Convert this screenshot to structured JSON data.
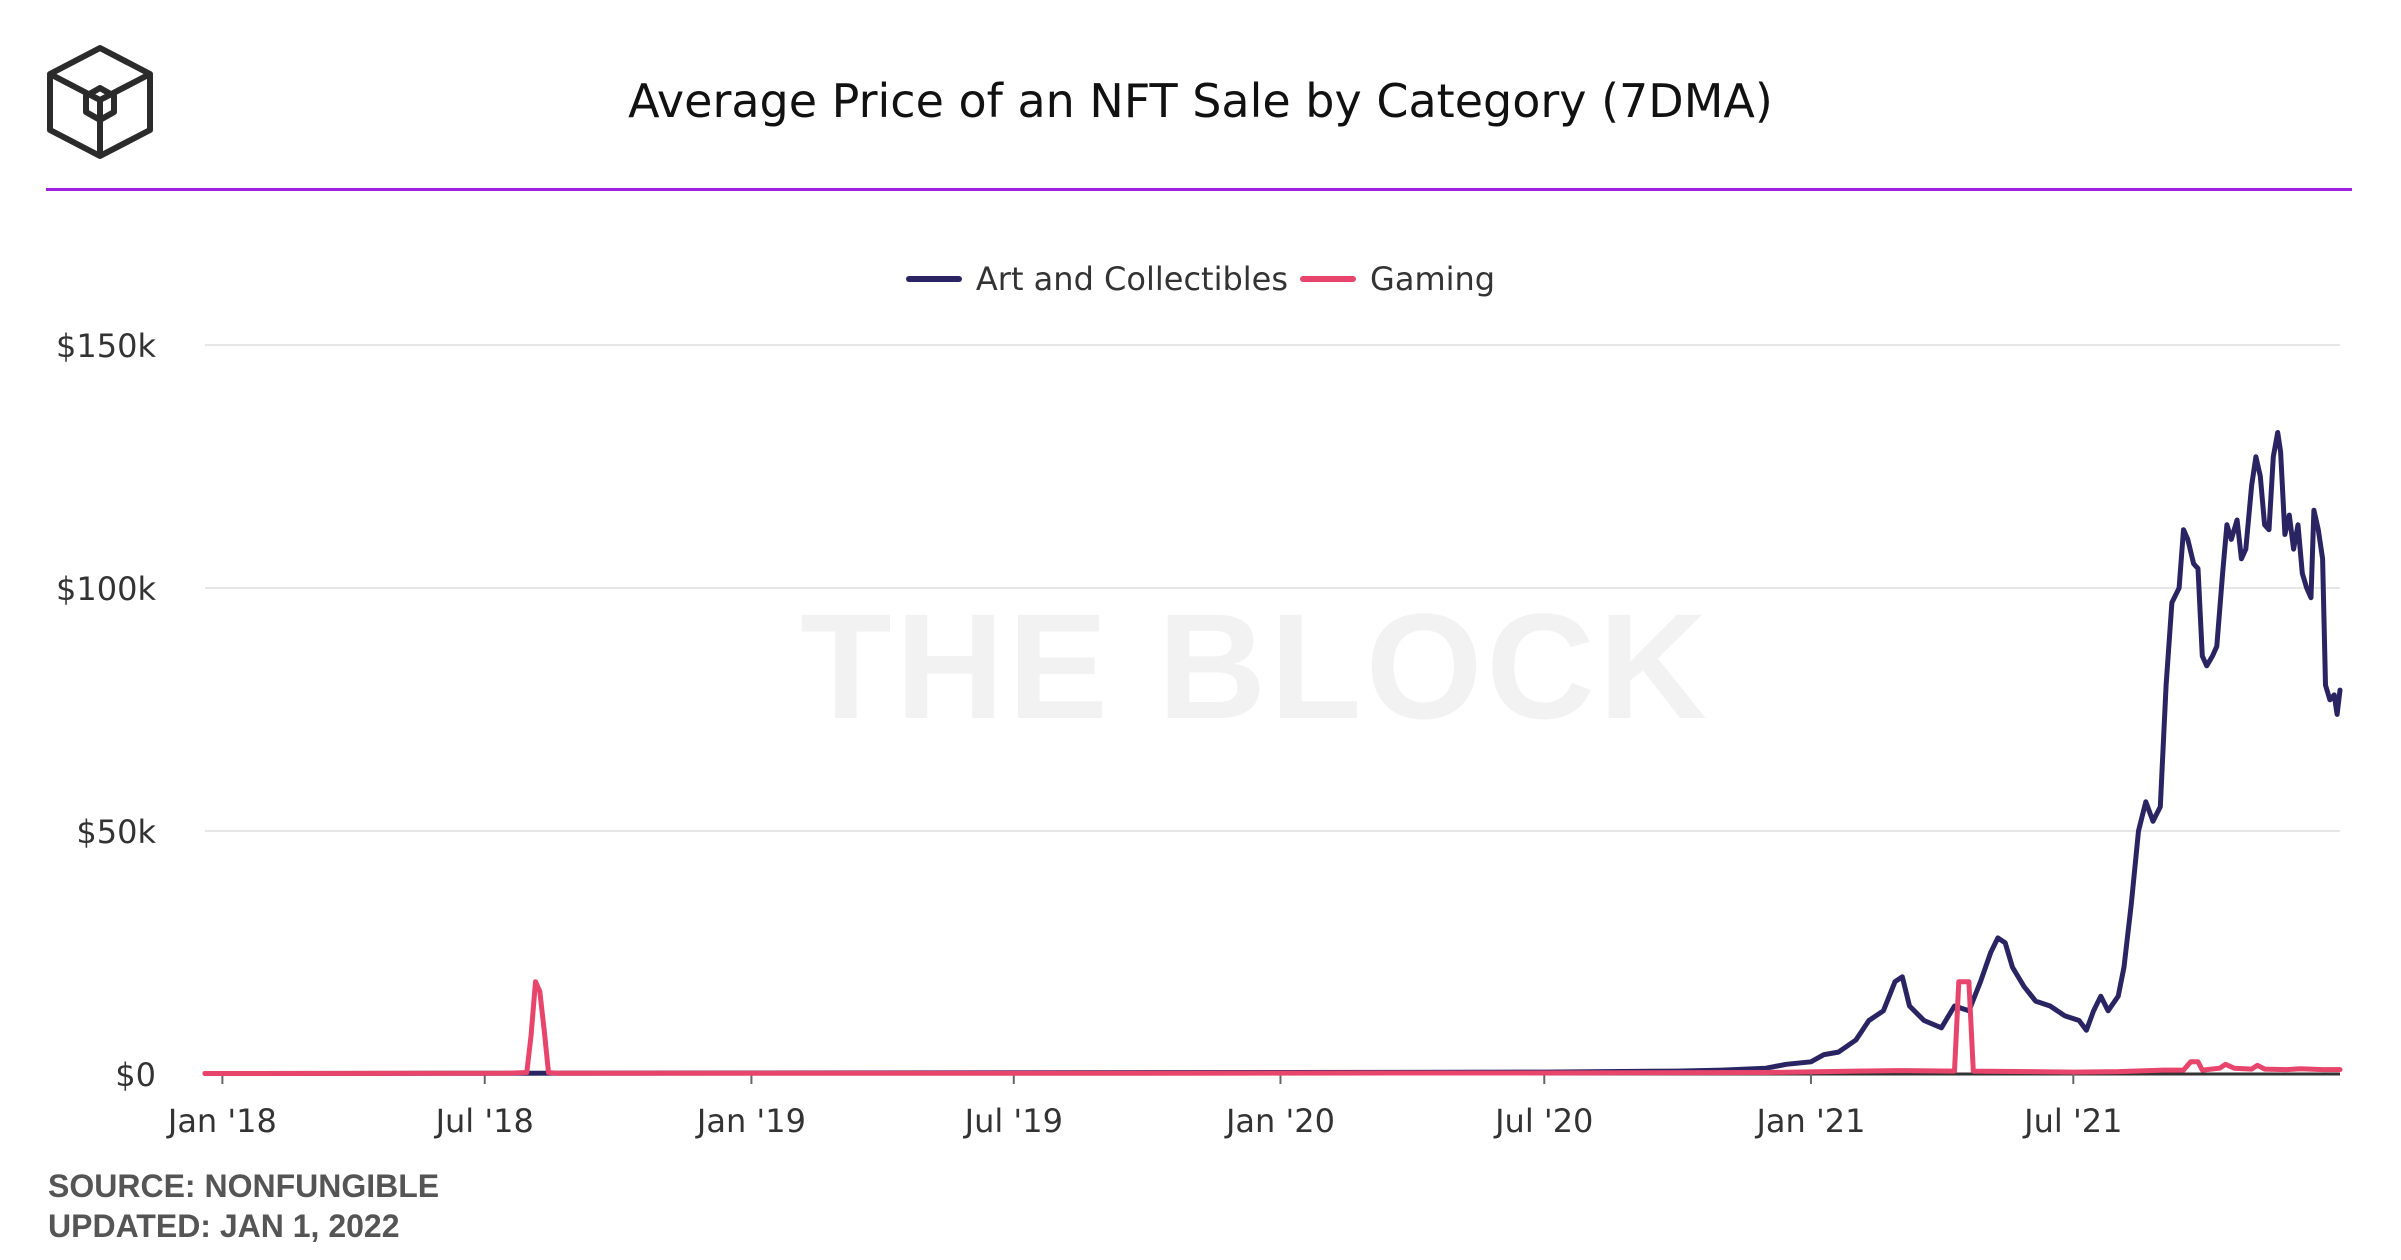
{
  "header": {
    "title": "Average Price of an NFT Sale by Category (7DMA)",
    "watermark": "THE BLOCK"
  },
  "footer": {
    "source": "SOURCE: NONFUNGIBLE",
    "updated": "UPDATED: JAN 1, 2022"
  },
  "colors": {
    "accent_rule": "#a020e0",
    "art": "#2a2462",
    "gaming": "#e8456c",
    "grid": "#e6e6e6"
  },
  "chart_data": {
    "type": "line",
    "title": "Average Price of an NFT Sale by Category (7DMA)",
    "xlabel": "",
    "ylabel": "",
    "x_ticks": [
      "Jan '18",
      "Jul '18",
      "Jan '19",
      "Jul '19",
      "Jan '20",
      "Jul '20",
      "Jan '21",
      "Jul '21"
    ],
    "y_ticks": [
      "$0",
      "$50k",
      "$100k",
      "$150k"
    ],
    "ylim": [
      0,
      150000
    ],
    "xlim": [
      "2017-12-20",
      "2022-01-01"
    ],
    "grid": true,
    "legend_position": "top-center",
    "series": [
      {
        "name": "Art and Collectibles",
        "color": "#2a2462",
        "points": [
          [
            "2017-12-20",
            100
          ],
          [
            "2018-06-01",
            150
          ],
          [
            "2019-01-01",
            200
          ],
          [
            "2019-07-01",
            250
          ],
          [
            "2020-01-01",
            300
          ],
          [
            "2020-07-01",
            400
          ],
          [
            "2020-10-01",
            600
          ],
          [
            "2020-11-01",
            800
          ],
          [
            "2020-12-01",
            1200
          ],
          [
            "2020-12-15",
            2000
          ],
          [
            "2021-01-01",
            2500
          ],
          [
            "2021-01-10",
            4000
          ],
          [
            "2021-01-20",
            4500
          ],
          [
            "2021-02-01",
            7000
          ],
          [
            "2021-02-10",
            11000
          ],
          [
            "2021-02-20",
            13000
          ],
          [
            "2021-02-28",
            19000
          ],
          [
            "2021-03-05",
            20000
          ],
          [
            "2021-03-10",
            14000
          ],
          [
            "2021-03-20",
            11000
          ],
          [
            "2021-04-01",
            9500
          ],
          [
            "2021-04-10",
            14000
          ],
          [
            "2021-04-20",
            13000
          ],
          [
            "2021-04-28",
            19000
          ],
          [
            "2021-05-05",
            25000
          ],
          [
            "2021-05-10",
            28000
          ],
          [
            "2021-05-15",
            27000
          ],
          [
            "2021-05-20",
            22000
          ],
          [
            "2021-05-28",
            18000
          ],
          [
            "2021-06-05",
            15000
          ],
          [
            "2021-06-15",
            14000
          ],
          [
            "2021-06-25",
            12000
          ],
          [
            "2021-07-05",
            11000
          ],
          [
            "2021-07-10",
            9000
          ],
          [
            "2021-07-15",
            13000
          ],
          [
            "2021-07-20",
            16000
          ],
          [
            "2021-07-25",
            13000
          ],
          [
            "2021-08-01",
            16000
          ],
          [
            "2021-08-05",
            22000
          ],
          [
            "2021-08-10",
            35000
          ],
          [
            "2021-08-15",
            50000
          ],
          [
            "2021-08-20",
            56000
          ],
          [
            "2021-08-25",
            52000
          ],
          [
            "2021-08-30",
            55000
          ],
          [
            "2021-09-03",
            80000
          ],
          [
            "2021-09-07",
            97000
          ],
          [
            "2021-09-12",
            100000
          ],
          [
            "2021-09-15",
            112000
          ],
          [
            "2021-09-18",
            110000
          ],
          [
            "2021-09-22",
            105000
          ],
          [
            "2021-09-25",
            104000
          ],
          [
            "2021-09-28",
            86000
          ],
          [
            "2021-10-01",
            84000
          ],
          [
            "2021-10-05",
            86000
          ],
          [
            "2021-10-08",
            88000
          ],
          [
            "2021-10-12",
            103000
          ],
          [
            "2021-10-15",
            113000
          ],
          [
            "2021-10-18",
            110000
          ],
          [
            "2021-10-22",
            114000
          ],
          [
            "2021-10-25",
            106000
          ],
          [
            "2021-10-28",
            108000
          ],
          [
            "2021-11-01",
            121000
          ],
          [
            "2021-11-04",
            127000
          ],
          [
            "2021-11-07",
            123000
          ],
          [
            "2021-11-10",
            113000
          ],
          [
            "2021-11-13",
            112000
          ],
          [
            "2021-11-16",
            127000
          ],
          [
            "2021-11-19",
            132000
          ],
          [
            "2021-11-21",
            128000
          ],
          [
            "2021-11-24",
            111000
          ],
          [
            "2021-11-27",
            115000
          ],
          [
            "2021-11-30",
            108000
          ],
          [
            "2021-12-03",
            113000
          ],
          [
            "2021-12-06",
            103000
          ],
          [
            "2021-12-09",
            100000
          ],
          [
            "2021-12-12",
            98000
          ],
          [
            "2021-12-14",
            116000
          ],
          [
            "2021-12-17",
            112000
          ],
          [
            "2021-12-20",
            106000
          ],
          [
            "2021-12-22",
            80000
          ],
          [
            "2021-12-25",
            77000
          ],
          [
            "2021-12-28",
            78000
          ],
          [
            "2021-12-30",
            74000
          ],
          [
            "2022-01-01",
            79000
          ]
        ]
      },
      {
        "name": "Gaming",
        "color": "#e8456c",
        "points": [
          [
            "2017-12-20",
            100
          ],
          [
            "2018-07-15",
            150
          ],
          [
            "2018-07-30",
            300
          ],
          [
            "2018-08-02",
            8000
          ],
          [
            "2018-08-05",
            19000
          ],
          [
            "2018-08-08",
            17000
          ],
          [
            "2018-08-11",
            9000
          ],
          [
            "2018-08-14",
            300
          ],
          [
            "2018-08-20",
            150
          ],
          [
            "2019-06-01",
            150
          ],
          [
            "2020-06-01",
            200
          ],
          [
            "2020-12-01",
            300
          ],
          [
            "2021-02-01",
            600
          ],
          [
            "2021-03-01",
            700
          ],
          [
            "2021-04-10",
            600
          ],
          [
            "2021-04-13",
            19000
          ],
          [
            "2021-04-20",
            19000
          ],
          [
            "2021-04-23",
            600
          ],
          [
            "2021-06-01",
            500
          ],
          [
            "2021-07-01",
            400
          ],
          [
            "2021-08-01",
            500
          ],
          [
            "2021-09-01",
            800
          ],
          [
            "2021-09-15",
            800
          ],
          [
            "2021-09-20",
            2500
          ],
          [
            "2021-09-25",
            2500
          ],
          [
            "2021-09-28",
            800
          ],
          [
            "2021-10-10",
            1200
          ],
          [
            "2021-10-14",
            2000
          ],
          [
            "2021-10-20",
            1200
          ],
          [
            "2021-11-01",
            1000
          ],
          [
            "2021-11-05",
            1800
          ],
          [
            "2021-11-10",
            1000
          ],
          [
            "2021-11-25",
            900
          ],
          [
            "2021-12-05",
            1100
          ],
          [
            "2021-12-20",
            900
          ],
          [
            "2022-01-01",
            900
          ]
        ]
      }
    ]
  }
}
